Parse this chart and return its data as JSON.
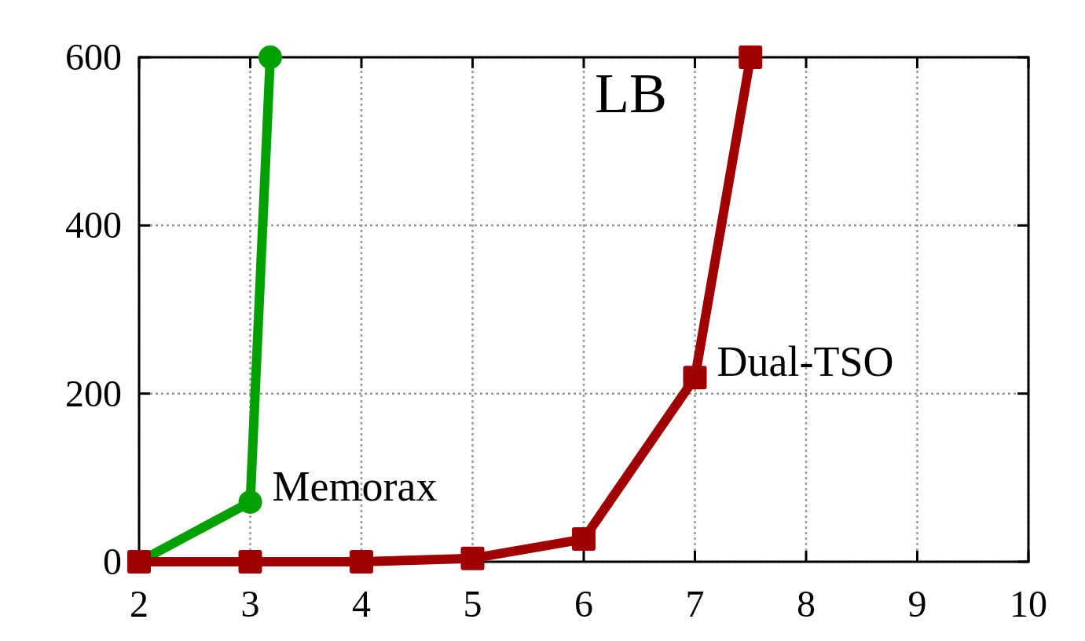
{
  "chart_data": {
    "type": "line",
    "title": "LB",
    "xlim": [
      2,
      10
    ],
    "xticks": [
      2,
      3,
      4,
      5,
      6,
      7,
      8,
      9,
      10
    ],
    "ylim": [
      0,
      600
    ],
    "yticks": [
      0,
      200,
      400,
      600
    ],
    "grid": true,
    "line_style": "solid",
    "series": [
      {
        "name": "Memorax",
        "color": "#00a000",
        "marker": "circle",
        "x": [
          2,
          3,
          3.18
        ],
        "values": [
          0,
          71,
          600
        ]
      },
      {
        "name": "Dual-TSO",
        "color": "#a00000",
        "marker": "square",
        "x": [
          2,
          3,
          4,
          5,
          6,
          7,
          7.5
        ],
        "values": [
          0,
          0,
          0,
          4,
          27,
          219,
          600
        ]
      }
    ]
  }
}
